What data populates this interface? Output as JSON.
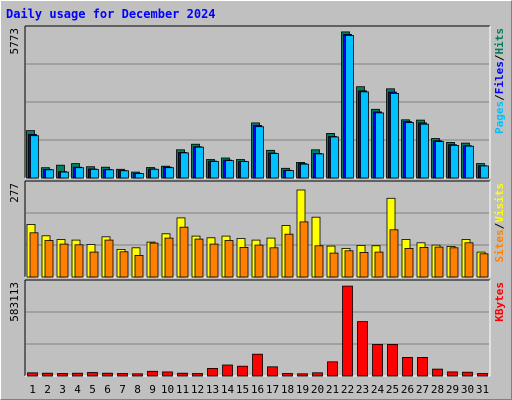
{
  "title": "Daily usage for December 2024",
  "colors": {
    "background": "#C0C0C0",
    "plot_area": "#C0C0C0",
    "hits": "#00805C",
    "files": "#0000FF",
    "pages": "#00C0FF",
    "visits": "#FFFF00",
    "sites": "#FF8000",
    "kbytes": "#FF0000",
    "weekend_day": "#00805C",
    "weekday": "#000000",
    "title": "#0000FF"
  },
  "legend": {
    "top": [
      {
        "label": "Pages",
        "color": "#00C0FF"
      },
      {
        "label": "/",
        "color": "#000000"
      },
      {
        "label": "Files",
        "color": "#0000FF"
      },
      {
        "label": "/",
        "color": "#000000"
      },
      {
        "label": "Hits",
        "color": "#00805C"
      }
    ],
    "middle": [
      {
        "label": "Sites",
        "color": "#FF8000"
      },
      {
        "label": "/",
        "color": "#000000"
      },
      {
        "label": "Visits",
        "color": "#FFFF00"
      }
    ],
    "bottom": [
      {
        "label": "KBytes",
        "color": "#FF0000"
      }
    ]
  },
  "chart_data": [
    {
      "type": "bar",
      "panel": "hits-files-pages",
      "categories": [
        "1",
        "2",
        "3",
        "4",
        "5",
        "6",
        "7",
        "8",
        "9",
        "10",
        "11",
        "12",
        "13",
        "14",
        "15",
        "16",
        "17",
        "18",
        "19",
        "20",
        "21",
        "22",
        "23",
        "24",
        "25",
        "26",
        "27",
        "28",
        "29",
        "30",
        "31"
      ],
      "weekend_days": [
        "1",
        "7",
        "8",
        "14",
        "15",
        "21",
        "22",
        "28",
        "29"
      ],
      "ymax_label": "5773",
      "ylim": [
        0,
        5773
      ],
      "grid": true,
      "series": [
        {
          "name": "Hits",
          "color": "#00805C",
          "values": [
            1850,
            400,
            500,
            560,
            440,
            420,
            340,
            230,
            410,
            460,
            1100,
            1320,
            720,
            780,
            720,
            2150,
            1080,
            380,
            610,
            1100,
            1740,
            5700,
            3560,
            2680,
            3480,
            2270,
            2260,
            1540,
            1390,
            1360,
            560
          ]
        },
        {
          "name": "Files",
          "color": "#0000FF",
          "values": [
            1700,
            330,
            250,
            420,
            350,
            330,
            290,
            180,
            350,
            420,
            1000,
            1220,
            660,
            700,
            650,
            2050,
            970,
            300,
            560,
            960,
            1620,
            5600,
            3400,
            2580,
            3350,
            2200,
            2150,
            1450,
            1300,
            1260,
            480
          ]
        },
        {
          "name": "Pages",
          "color": "#00C0FF",
          "values": [
            1650,
            320,
            230,
            400,
            330,
            320,
            280,
            170,
            340,
            400,
            980,
            1200,
            640,
            680,
            640,
            2000,
            950,
            290,
            540,
            940,
            1600,
            5560,
            3360,
            2540,
            3300,
            2160,
            2100,
            1420,
            1270,
            1240,
            470
          ]
        }
      ]
    },
    {
      "type": "bar",
      "panel": "visits-sites",
      "categories": [
        "1",
        "2",
        "3",
        "4",
        "5",
        "6",
        "7",
        "8",
        "9",
        "10",
        "11",
        "12",
        "13",
        "14",
        "15",
        "16",
        "17",
        "18",
        "19",
        "20",
        "21",
        "22",
        "23",
        "24",
        "25",
        "26",
        "27",
        "28",
        "29",
        "30",
        "31"
      ],
      "ymax_label": "277",
      "ylim": [
        0,
        277
      ],
      "grid": true,
      "series": [
        {
          "name": "Visits",
          "color": "#FFFF00",
          "values": [
            158,
            124,
            113,
            111,
            98,
            121,
            83,
            88,
            105,
            130,
            178,
            123,
            118,
            123,
            116,
            111,
            117,
            155,
            262,
            180,
            93,
            86,
            95,
            94,
            237,
            113,
            103,
            96,
            92,
            113,
            75
          ]
        },
        {
          "name": "Sites",
          "color": "#FF8000",
          "values": [
            133,
            110,
            99,
            97,
            75,
            111,
            76,
            65,
            102,
            117,
            150,
            114,
            99,
            110,
            89,
            96,
            88,
            129,
            166,
            94,
            72,
            79,
            74,
            75,
            142,
            86,
            89,
            90,
            88,
            103,
            70
          ]
        }
      ]
    },
    {
      "type": "bar",
      "panel": "kbytes",
      "categories": [
        "1",
        "2",
        "3",
        "4",
        "5",
        "6",
        "7",
        "8",
        "9",
        "10",
        "11",
        "12",
        "13",
        "14",
        "15",
        "16",
        "17",
        "18",
        "19",
        "20",
        "21",
        "22",
        "23",
        "24",
        "25",
        "26",
        "27",
        "28",
        "29",
        "30",
        "31"
      ],
      "ymax_label": "583113",
      "ylim": [
        0,
        583113
      ],
      "grid": true,
      "series": [
        {
          "name": "KBytes",
          "color": "#FF0000",
          "values": [
            20000,
            18000,
            16000,
            18000,
            22000,
            18000,
            16000,
            14000,
            30000,
            26000,
            18000,
            16000,
            48000,
            70000,
            62000,
            138000,
            58000,
            16000,
            14000,
            20000,
            90000,
            570000,
            345000,
            200000,
            200000,
            118000,
            118000,
            44000,
            26000,
            24000,
            16000
          ]
        }
      ]
    }
  ]
}
